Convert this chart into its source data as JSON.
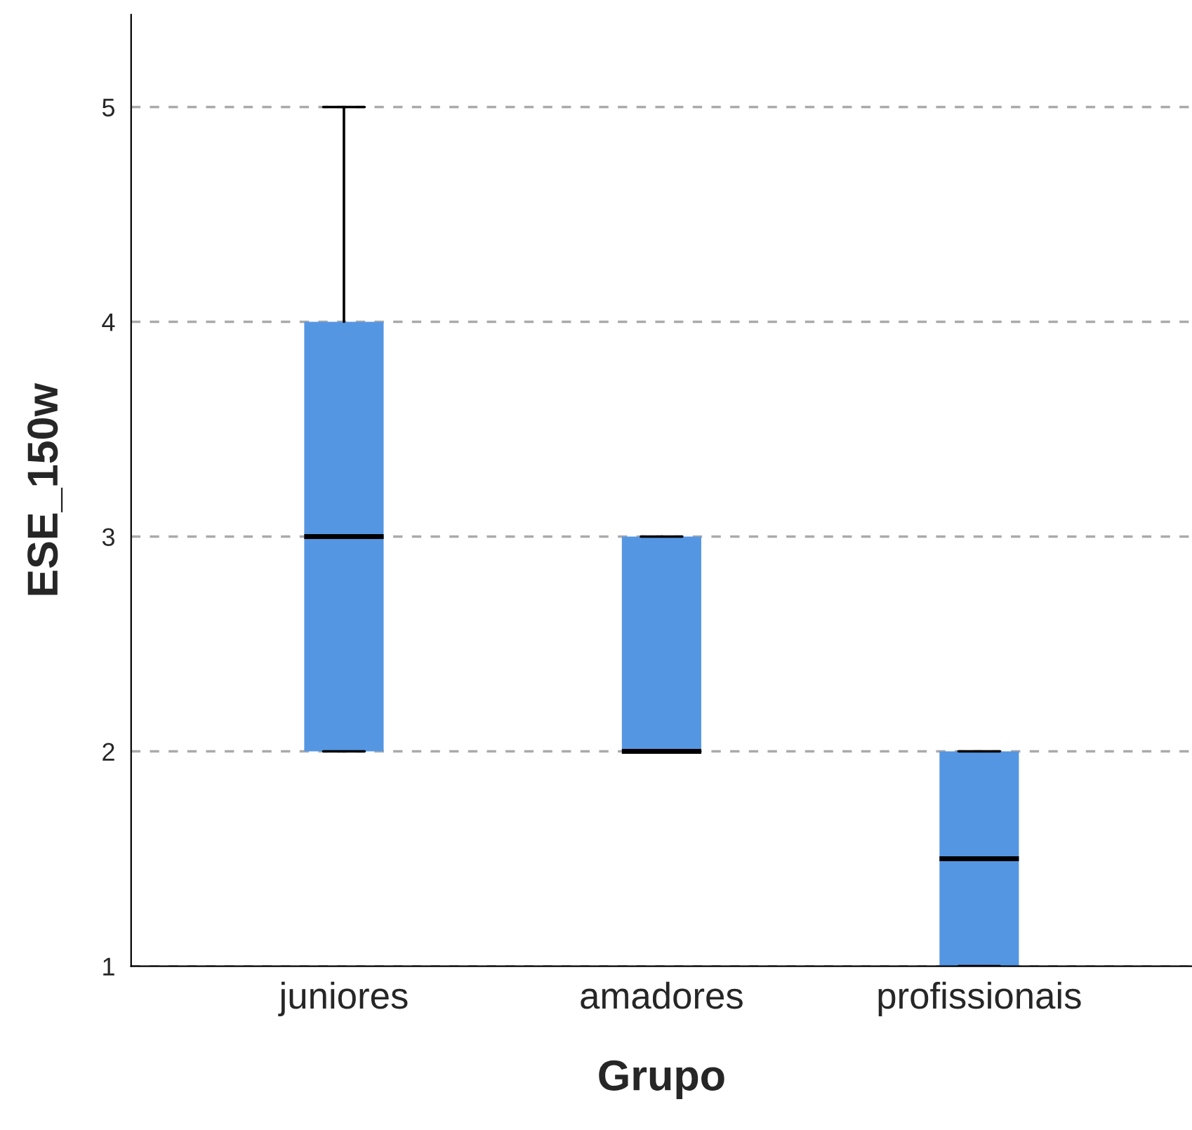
{
  "chart_data": {
    "type": "box",
    "xlabel": "Grupo",
    "ylabel": "ESE_150w",
    "categories": [
      "juniores",
      "amadores",
      "profissionais"
    ],
    "boxes": [
      {
        "low": 2,
        "q1": 2,
        "median": 3,
        "q3": 4,
        "high": 5
      },
      {
        "low": 2,
        "q1": 2,
        "median": 2,
        "q3": 3,
        "high": 3
      },
      {
        "low": 1,
        "q1": 1,
        "median": 1.5,
        "q3": 2,
        "high": 2
      }
    ],
    "color": "#5596e3",
    "ylim": [
      1,
      5.43
    ],
    "yticks": [
      1,
      2,
      3,
      4,
      5
    ],
    "grid": "y"
  }
}
